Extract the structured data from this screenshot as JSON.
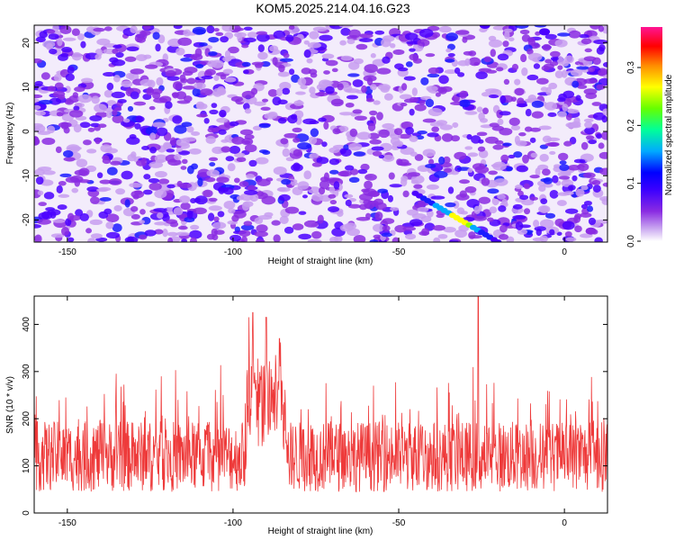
{
  "title": "KOM5.2025.214.04.16.G23",
  "chart_data": [
    {
      "type": "heatmap",
      "xlabel": "Height of straight line (km)",
      "ylabel": "Frequency (Hz)",
      "xlim": [
        -160,
        13
      ],
      "ylim": [
        -25,
        24
      ],
      "xticks": [
        -150,
        -100,
        -50,
        0
      ],
      "yticks": [
        -20,
        -10,
        0,
        10,
        20
      ],
      "grid": false,
      "colorbar": {
        "label": "Normalized spectral amplitude",
        "range": [
          0,
          0.37
        ],
        "ticks": [
          0.0,
          0.1,
          0.2,
          0.3
        ],
        "colors": [
          "#ffffff",
          "#c9a6f0",
          "#8a2be2",
          "#4b00ff",
          "#0000ff",
          "#00bfff",
          "#00ff7f",
          "#7fff00",
          "#ffff00",
          "#ff8c00",
          "#ff0000",
          "#ff1493"
        ]
      },
      "features": [
        {
          "type": "diagonal-ridge",
          "x": [
            -45,
            -20
          ],
          "y": [
            -14,
            -25
          ],
          "peak": 0.32
        },
        {
          "type": "spot",
          "x": -6,
          "y": 22.5,
          "value": 0.14
        },
        {
          "type": "spot",
          "x": -24,
          "y": 24,
          "value": 0.12
        },
        {
          "type": "spot",
          "x": 8,
          "y": -22.5,
          "value": 0.1
        }
      ]
    },
    {
      "type": "line",
      "xlabel": "Height of straight line (km)",
      "ylabel": "SNR (10 * v/v)",
      "xlim": [
        -160,
        13
      ],
      "ylim": [
        0,
        460
      ],
      "xticks": [
        -150,
        -100,
        -50,
        0
      ],
      "yticks": [
        0,
        100,
        200,
        300,
        400
      ],
      "color": "#ee3a3a",
      "grid": false,
      "peaks": [
        {
          "x": -26,
          "y": 460
        },
        {
          "x": -94,
          "y": 425
        },
        {
          "x": -90,
          "y": 415
        },
        {
          "x": -86,
          "y": 370
        }
      ]
    }
  ]
}
